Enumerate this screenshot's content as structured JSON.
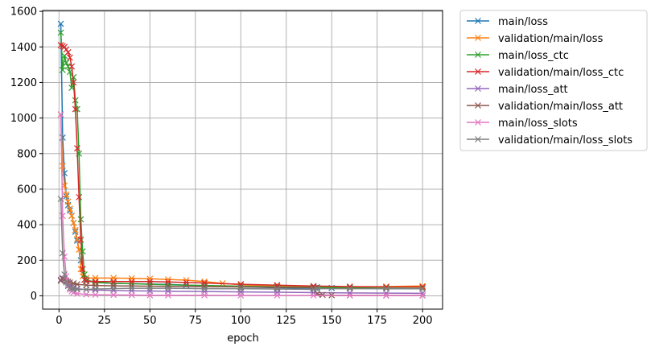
{
  "chart_data": {
    "type": "line",
    "xlabel": "epoch",
    "ylabel": "",
    "title": "",
    "xlim": [
      -9,
      211
    ],
    "ylim": [
      -75,
      1605
    ],
    "xticks": [
      0,
      25,
      50,
      75,
      100,
      125,
      150,
      175,
      200
    ],
    "yticks": [
      0,
      200,
      400,
      600,
      800,
      1000,
      1200,
      1400,
      1600
    ],
    "grid": true,
    "marker": "x",
    "legend_position": "outside-top-right",
    "series": [
      {
        "name": "main/loss",
        "color": "#1f77b4",
        "x": [
          1,
          2,
          3,
          4,
          5,
          6,
          7,
          8,
          9,
          10,
          12,
          15,
          20,
          30,
          40,
          50,
          60,
          70,
          80,
          100,
          120,
          140,
          141,
          142,
          150,
          160,
          180,
          200
        ],
        "y": [
          1530,
          890,
          690,
          560,
          510,
          480,
          450,
          410,
          360,
          310,
          200,
          90,
          75,
          70,
          68,
          66,
          64,
          60,
          55,
          50,
          45,
          42,
          45,
          48,
          44,
          42,
          40,
          40
        ]
      },
      {
        "name": "validation/main/loss",
        "color": "#ff7f0e",
        "x": [
          1,
          2,
          3,
          4,
          5,
          6,
          7,
          8,
          9,
          10,
          11,
          12,
          13,
          15,
          20,
          30,
          40,
          50,
          60,
          70,
          80,
          90,
          100,
          120,
          140,
          160,
          180,
          200
        ],
        "y": [
          1020,
          730,
          620,
          570,
          530,
          490,
          450,
          410,
          370,
          320,
          260,
          150,
          110,
          100,
          100,
          100,
          98,
          96,
          92,
          88,
          80,
          70,
          62,
          55,
          50,
          50,
          52,
          55
        ]
      },
      {
        "name": "main/loss_ctc",
        "color": "#2ca02c",
        "x": [
          1,
          2,
          3,
          4,
          5,
          6,
          7,
          8,
          9,
          10,
          11,
          12,
          13,
          14,
          15,
          20,
          30,
          40,
          50,
          60,
          80,
          100,
          120,
          140,
          160,
          180,
          200
        ],
        "y": [
          1480,
          1270,
          1350,
          1310,
          1290,
          1260,
          1170,
          1230,
          1100,
          1050,
          800,
          430,
          250,
          120,
          85,
          75,
          70,
          68,
          65,
          62,
          58,
          54,
          50,
          48,
          45,
          43,
          42
        ]
      },
      {
        "name": "validation/main/loss_ctc",
        "color": "#d62728",
        "x": [
          1,
          2,
          3,
          4,
          5,
          6,
          7,
          8,
          9,
          10,
          11,
          12,
          13,
          14,
          15,
          20,
          30,
          40,
          50,
          60,
          70,
          80,
          100,
          120,
          140,
          160,
          180,
          200
        ],
        "y": [
          1410,
          1405,
          1400,
          1385,
          1370,
          1340,
          1290,
          1200,
          1050,
          830,
          555,
          315,
          150,
          90,
          82,
          80,
          80,
          80,
          80,
          78,
          75,
          72,
          65,
          60,
          55,
          52,
          50,
          50
        ]
      },
      {
        "name": "main/loss_att",
        "color": "#9467bd",
        "x": [
          1,
          2,
          3,
          4,
          5,
          6,
          7,
          8,
          10,
          15,
          20,
          30,
          40,
          50,
          60,
          80,
          100,
          120,
          140,
          160,
          180,
          200
        ],
        "y": [
          90,
          100,
          95,
          80,
          70,
          60,
          50,
          45,
          40,
          35,
          32,
          30,
          28,
          27,
          26,
          24,
          22,
          20,
          18,
          16,
          15,
          14
        ]
      },
      {
        "name": "validation/main/loss_att",
        "color": "#8c564b",
        "x": [
          1,
          2,
          3,
          4,
          5,
          6,
          8,
          10,
          15,
          20,
          30,
          40,
          50,
          60,
          80,
          100,
          120,
          140,
          142,
          145,
          150,
          160,
          180,
          200
        ],
        "y": [
          85,
          95,
          90,
          85,
          80,
          75,
          70,
          65,
          60,
          58,
          56,
          55,
          54,
          53,
          52,
          50,
          48,
          46,
          10,
          5,
          3,
          2,
          2,
          2
        ]
      },
      {
        "name": "main/loss_slots",
        "color": "#e377c2",
        "x": [
          1,
          2,
          3,
          4,
          5,
          6,
          7,
          8,
          10,
          15,
          20,
          30,
          40,
          50,
          60,
          80,
          100,
          120,
          140,
          160,
          180,
          200
        ],
        "y": [
          1020,
          450,
          220,
          110,
          60,
          35,
          25,
          18,
          12,
          8,
          6,
          5,
          4,
          3,
          3,
          3,
          2,
          2,
          2,
          2,
          1,
          1
        ]
      },
      {
        "name": "validation/main/loss_slots",
        "color": "#7f7f7f",
        "x": [
          1,
          2,
          3,
          4,
          5,
          6,
          7,
          8,
          10,
          15,
          20,
          30,
          40,
          50,
          60,
          80,
          100,
          120,
          140,
          142,
          160,
          180,
          200
        ],
        "y": [
          545,
          240,
          120,
          75,
          55,
          45,
          40,
          38,
          36,
          36,
          38,
          40,
          42,
          42,
          42,
          40,
          40,
          38,
          36,
          40,
          40,
          40,
          40
        ]
      }
    ]
  }
}
